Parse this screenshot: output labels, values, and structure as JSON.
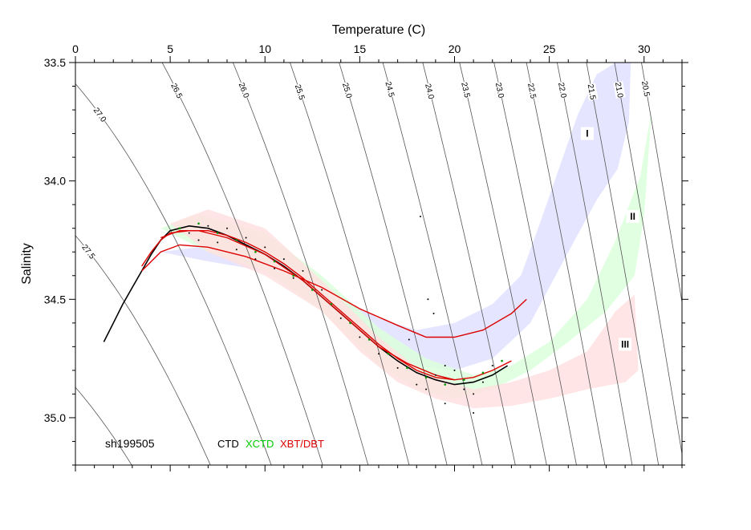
{
  "chart_data": {
    "type": "scatter",
    "xlabel": "Temperature (C)",
    "ylabel": "Salinity",
    "xlim": [
      0,
      32
    ],
    "ylim": [
      35.2,
      33.5
    ],
    "x_ticks": [
      0,
      5,
      10,
      15,
      20,
      25,
      30
    ],
    "y_ticks": [
      33.5,
      34.0,
      34.5,
      35.0
    ],
    "y_tick_labels": [
      "33.5",
      "34.0",
      "34.5",
      "35.0"
    ],
    "cruise_label": "sh199505",
    "legend": [
      {
        "label": "CTD",
        "color": "#000000"
      },
      {
        "label": "XCTD",
        "color": "#00cc00"
      },
      {
        "label": "XBT/DBT",
        "color": "#dd0000"
      }
    ],
    "density_contours": [
      {
        "label": "20.5",
        "sigma": 20.5
      },
      {
        "label": "21.0",
        "sigma": 21.0
      },
      {
        "label": "21.5",
        "sigma": 21.5
      },
      {
        "label": "22.0",
        "sigma": 22.0
      },
      {
        "label": "22.5",
        "sigma": 22.5
      },
      {
        "label": "23.0",
        "sigma": 23.0
      },
      {
        "label": "23.5",
        "sigma": 23.5
      },
      {
        "label": "24.0",
        "sigma": 24.0
      },
      {
        "label": "24.5",
        "sigma": 24.5
      },
      {
        "label": "25.0",
        "sigma": 25.0
      },
      {
        "label": "25.5",
        "sigma": 25.5
      },
      {
        "label": "26.0",
        "sigma": 26.0
      },
      {
        "label": "26.5",
        "sigma": 26.5
      },
      {
        "label": "27.0",
        "sigma": 27.0
      },
      {
        "label": "27.5",
        "sigma": 27.5
      },
      {
        "label": "",
        "sigma": 28.0
      }
    ],
    "regions": [
      {
        "label": "I",
        "color": "#e0e0ff",
        "upper": [
          [
            4.5,
            34.3
          ],
          [
            6.5,
            34.28
          ],
          [
            10,
            34.32
          ],
          [
            13,
            34.45
          ],
          [
            16,
            34.58
          ],
          [
            18,
            34.63
          ],
          [
            20,
            34.6
          ],
          [
            22,
            34.52
          ],
          [
            23.5,
            34.4
          ],
          [
            24.5,
            34.18
          ],
          [
            25.5,
            33.95
          ],
          [
            26.5,
            33.72
          ],
          [
            27.5,
            33.55
          ],
          [
            28.5,
            33.5
          ],
          [
            29.3,
            33.5
          ]
        ],
        "lower": [
          [
            29.3,
            33.5
          ],
          [
            29.2,
            33.75
          ],
          [
            28.6,
            33.95
          ],
          [
            27.5,
            34.08
          ],
          [
            26,
            34.3
          ],
          [
            25,
            34.45
          ],
          [
            24,
            34.6
          ],
          [
            22,
            34.75
          ],
          [
            20,
            34.8
          ],
          [
            18,
            34.78
          ],
          [
            16,
            34.7
          ],
          [
            13,
            34.52
          ],
          [
            10,
            34.38
          ],
          [
            7,
            34.34
          ],
          [
            4.5,
            34.3
          ]
        ]
      },
      {
        "label": "II",
        "color": "#dcffdc",
        "upper": [
          [
            4.5,
            34.2
          ],
          [
            6.5,
            34.14
          ],
          [
            10,
            34.22
          ],
          [
            13,
            34.4
          ],
          [
            16,
            34.62
          ],
          [
            18.5,
            34.75
          ],
          [
            21,
            34.82
          ],
          [
            23,
            34.78
          ],
          [
            25,
            34.68
          ],
          [
            27,
            34.5
          ],
          [
            28.5,
            34.25
          ],
          [
            29.8,
            33.98
          ],
          [
            30.4,
            33.7
          ]
        ],
        "lower": [
          [
            30.4,
            33.7
          ],
          [
            30,
            34.15
          ],
          [
            29.5,
            34.4
          ],
          [
            28,
            34.55
          ],
          [
            26,
            34.68
          ],
          [
            24,
            34.8
          ],
          [
            22,
            34.88
          ],
          [
            20,
            34.92
          ],
          [
            18,
            34.88
          ],
          [
            16,
            34.78
          ],
          [
            13,
            34.55
          ],
          [
            10,
            34.38
          ],
          [
            7,
            34.3
          ],
          [
            4.5,
            34.2
          ]
        ]
      },
      {
        "label": "III",
        "color": "#ffe0e0",
        "upper": [
          [
            5,
            34.18
          ],
          [
            7,
            34.12
          ],
          [
            10,
            34.2
          ],
          [
            13,
            34.42
          ],
          [
            16,
            34.66
          ],
          [
            18.5,
            34.82
          ],
          [
            21,
            34.88
          ],
          [
            23,
            34.85
          ],
          [
            25,
            34.8
          ],
          [
            27,
            34.72
          ],
          [
            28.5,
            34.55
          ],
          [
            29.5,
            34.48
          ],
          [
            29.7,
            34.8
          ]
        ],
        "lower": [
          [
            29.7,
            34.8
          ],
          [
            29,
            34.85
          ],
          [
            27,
            34.88
          ],
          [
            25,
            34.92
          ],
          [
            23,
            34.95
          ],
          [
            21,
            34.96
          ],
          [
            19,
            34.92
          ],
          [
            17,
            34.85
          ],
          [
            15,
            34.72
          ],
          [
            13,
            34.55
          ],
          [
            10,
            34.4
          ],
          [
            7,
            34.3
          ],
          [
            5,
            34.18
          ]
        ]
      }
    ],
    "region_label_positions": [
      {
        "label": "I",
        "t": 27.0,
        "s": 33.8
      },
      {
        "label": "II",
        "t": 29.4,
        "s": 34.15
      },
      {
        "label": "III",
        "t": 29.0,
        "s": 34.69
      }
    ],
    "series": [
      {
        "name": "CTD",
        "kind": "line",
        "color": "#000000",
        "points": [
          [
            1.5,
            34.68
          ],
          [
            2,
            34.6
          ],
          [
            2.5,
            34.52
          ],
          [
            3,
            34.45
          ],
          [
            3.5,
            34.38
          ],
          [
            4,
            34.31
          ],
          [
            4.5,
            34.25
          ],
          [
            5,
            34.21
          ],
          [
            6,
            34.19
          ],
          [
            7,
            34.2
          ],
          [
            8,
            34.23
          ],
          [
            9,
            34.27
          ],
          [
            10,
            34.31
          ],
          [
            11,
            34.36
          ],
          [
            12,
            34.42
          ],
          [
            13,
            34.49
          ],
          [
            14,
            34.56
          ],
          [
            15,
            34.63
          ],
          [
            16,
            34.7
          ],
          [
            17,
            34.76
          ],
          [
            18,
            34.81
          ],
          [
            19,
            34.84
          ],
          [
            20,
            34.86
          ],
          [
            21,
            34.85
          ],
          [
            22,
            34.82
          ],
          [
            22.8,
            34.78
          ]
        ]
      },
      {
        "name": "XBT/DBT",
        "kind": "line",
        "color": "#dd0000",
        "points": [
          [
            3.5,
            34.36
          ],
          [
            4,
            34.3
          ],
          [
            4.5,
            34.25
          ],
          [
            5,
            34.22
          ],
          [
            6,
            34.21
          ],
          [
            7,
            34.21
          ],
          [
            8,
            34.23
          ],
          [
            9,
            34.26
          ],
          [
            10,
            34.3
          ],
          [
            11,
            34.35
          ],
          [
            12,
            34.41
          ],
          [
            13,
            34.48
          ],
          [
            14,
            34.55
          ],
          [
            15,
            34.62
          ],
          [
            16,
            34.69
          ],
          [
            17,
            34.75
          ],
          [
            18,
            34.8
          ],
          [
            19,
            34.83
          ],
          [
            20,
            34.84
          ],
          [
            21,
            34.83
          ],
          [
            22,
            34.8
          ],
          [
            23,
            34.76
          ]
        ]
      },
      {
        "name": "XBT/DBT",
        "kind": "line",
        "color": "#dd0000",
        "points": [
          [
            3.5,
            34.38
          ],
          [
            4.5,
            34.3
          ],
          [
            5.5,
            34.27
          ],
          [
            7,
            34.28
          ],
          [
            9,
            34.32
          ],
          [
            11,
            34.38
          ],
          [
            13,
            34.45
          ],
          [
            15,
            34.54
          ],
          [
            17,
            34.61
          ],
          [
            18.5,
            34.66
          ],
          [
            20,
            34.66
          ],
          [
            21.5,
            34.63
          ],
          [
            23,
            34.56
          ],
          [
            23.8,
            34.5
          ]
        ]
      },
      {
        "name": "XBT/DBT",
        "kind": "line",
        "color": "#dd0000",
        "points": [
          [
            4.5,
            34.24
          ],
          [
            5.5,
            34.21
          ],
          [
            6.5,
            34.21
          ],
          [
            8,
            34.24
          ],
          [
            10,
            34.31
          ],
          [
            12,
            34.42
          ],
          [
            14,
            34.56
          ],
          [
            16,
            34.7
          ],
          [
            17.5,
            34.77
          ],
          [
            19,
            34.82
          ],
          [
            20,
            34.84
          ]
        ]
      },
      {
        "name": "XCTD",
        "kind": "scatter",
        "color": "#009900",
        "points": [
          [
            5.5,
            34.2
          ],
          [
            6.5,
            34.18
          ],
          [
            7.5,
            34.22
          ],
          [
            8.5,
            34.25
          ],
          [
            9.5,
            34.3
          ],
          [
            10.5,
            34.34
          ],
          [
            11.5,
            34.4
          ],
          [
            12.5,
            34.46
          ],
          [
            13.5,
            34.52
          ],
          [
            14.5,
            34.6
          ],
          [
            15.5,
            34.67
          ],
          [
            16.5,
            34.73
          ],
          [
            17.5,
            34.79
          ],
          [
            18.5,
            34.83
          ],
          [
            19.5,
            34.86
          ],
          [
            20.5,
            34.84
          ],
          [
            21.5,
            34.81
          ],
          [
            22.5,
            34.76
          ]
        ]
      }
    ],
    "scatter_ctd": [
      [
        6,
        34.22
      ],
      [
        6.5,
        34.25
      ],
      [
        7,
        34.19
      ],
      [
        7.5,
        34.26
      ],
      [
        8,
        34.2
      ],
      [
        8.5,
        34.29
      ],
      [
        9,
        34.24
      ],
      [
        9.5,
        34.33
      ],
      [
        10,
        34.28
      ],
      [
        10.5,
        34.37
      ],
      [
        11,
        34.33
      ],
      [
        11.5,
        34.41
      ],
      [
        12,
        34.38
      ],
      [
        13,
        34.46
      ],
      [
        14,
        34.58
      ],
      [
        15,
        34.66
      ],
      [
        16,
        34.73
      ],
      [
        17,
        34.79
      ],
      [
        18,
        34.86
      ],
      [
        18.5,
        34.88
      ],
      [
        19,
        34.82
      ],
      [
        19.5,
        34.78
      ],
      [
        20,
        34.8
      ],
      [
        20.5,
        34.88
      ],
      [
        21,
        34.9
      ],
      [
        21.5,
        34.85
      ],
      [
        22,
        34.78
      ],
      [
        18.2,
        34.15
      ],
      [
        18.6,
        34.5
      ],
      [
        18.9,
        34.56
      ],
      [
        17.6,
        34.67
      ],
      [
        19.5,
        34.94
      ],
      [
        21,
        34.98
      ]
    ]
  }
}
